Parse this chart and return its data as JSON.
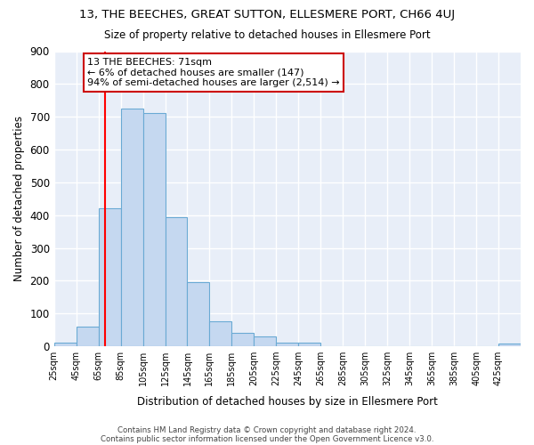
{
  "title1": "13, THE BEECHES, GREAT SUTTON, ELLESMERE PORT, CH66 4UJ",
  "title2": "Size of property relative to detached houses in Ellesmere Port",
  "xlabel": "Distribution of detached houses by size in Ellesmere Port",
  "ylabel": "Number of detached properties",
  "bin_labels": [
    "25sqm",
    "45sqm",
    "65sqm",
    "85sqm",
    "105sqm",
    "125sqm",
    "145sqm",
    "165sqm",
    "185sqm",
    "205sqm",
    "225sqm",
    "245sqm",
    "265sqm",
    "285sqm",
    "305sqm",
    "325sqm",
    "345sqm",
    "365sqm",
    "385sqm",
    "405sqm",
    "425sqm"
  ],
  "bin_left_edges": [
    25,
    45,
    65,
    85,
    105,
    125,
    145,
    165,
    185,
    205,
    225,
    245,
    265,
    285,
    305,
    325,
    345,
    365,
    385,
    405,
    425
  ],
  "bar_heights": [
    10,
    60,
    420,
    725,
    710,
    395,
    195,
    75,
    42,
    30,
    12,
    12,
    0,
    0,
    0,
    0,
    0,
    0,
    0,
    0,
    8
  ],
  "bar_color": "#c5d8f0",
  "bar_edge_color": "#6aaad4",
  "red_line_x": 71,
  "annotation_text": "13 THE BEECHES: 71sqm\n← 6% of detached houses are smaller (147)\n94% of semi-detached houses are larger (2,514) →",
  "annotation_box_color": "#ffffff",
  "annotation_border_color": "#cc0000",
  "ylim": [
    0,
    900
  ],
  "plot_bg_color": "#e8eef8",
  "fig_bg_color": "#ffffff",
  "grid_color": "#ffffff",
  "footer1": "Contains HM Land Registry data © Crown copyright and database right 2024.",
  "footer2": "Contains public sector information licensed under the Open Government Licence v3.0."
}
